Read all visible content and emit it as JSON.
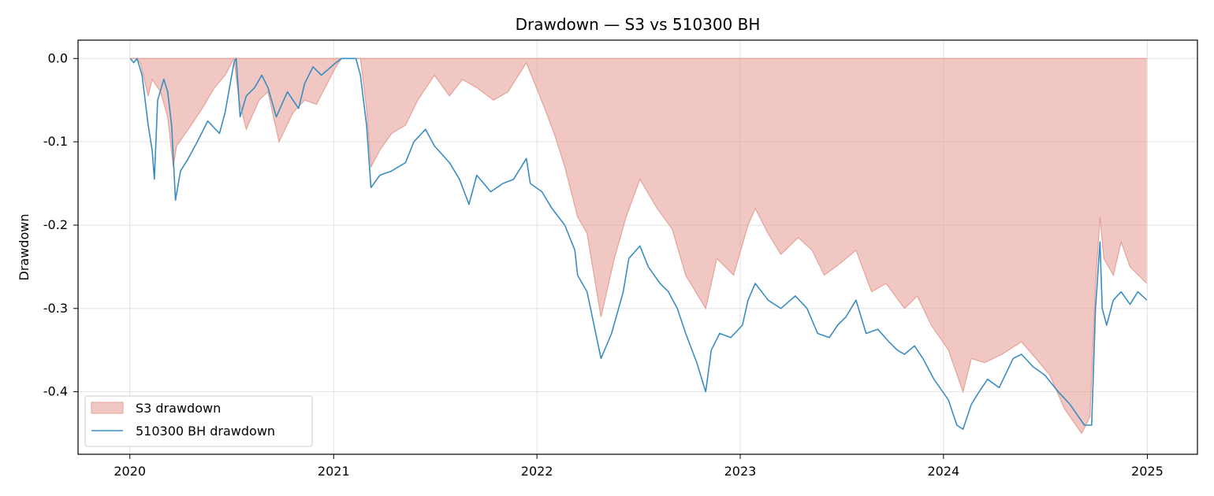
{
  "chart_data": {
    "type": "area",
    "title": "Drawdown — S3 vs 510300 BH",
    "xlabel": "",
    "ylabel": "Drawdown",
    "x_axis": "date",
    "xlim": [
      "2019-09-30",
      "2025-04-01"
    ],
    "ylim": [
      -0.475,
      0.022
    ],
    "x_tick_labels": [
      "2020",
      "2021",
      "2022",
      "2023",
      "2024",
      "2025"
    ],
    "y_tick_labels": [
      "0.0",
      "-0.1",
      "-0.2",
      "-0.3",
      "-0.4"
    ],
    "grid": true,
    "legend_position": "lower-left",
    "series": [
      {
        "name": "S3 drawdown",
        "kind": "area",
        "color": "#e6a299",
        "points": [
          [
            "2020-01-02",
            0.0
          ],
          [
            "2020-01-10",
            0.0
          ],
          [
            "2020-01-20",
            -0.005
          ],
          [
            "2020-02-03",
            -0.045
          ],
          [
            "2020-02-10",
            -0.025
          ],
          [
            "2020-02-25",
            -0.04
          ],
          [
            "2020-03-09",
            -0.07
          ],
          [
            "2020-03-19",
            -0.13
          ],
          [
            "2020-03-25",
            -0.105
          ],
          [
            "2020-04-15",
            -0.085
          ],
          [
            "2020-05-10",
            -0.06
          ],
          [
            "2020-06-01",
            -0.035
          ],
          [
            "2020-06-20",
            -0.02
          ],
          [
            "2020-07-06",
            0.0
          ],
          [
            "2020-07-15",
            -0.05
          ],
          [
            "2020-07-28",
            -0.085
          ],
          [
            "2020-08-20",
            -0.05
          ],
          [
            "2020-09-05",
            -0.04
          ],
          [
            "2020-09-25",
            -0.1
          ],
          [
            "2020-10-20",
            -0.065
          ],
          [
            "2020-11-10",
            -0.05
          ],
          [
            "2020-12-01",
            -0.055
          ],
          [
            "2021-01-05",
            -0.01
          ],
          [
            "2021-01-15",
            0.0
          ],
          [
            "2021-02-18",
            0.0
          ],
          [
            "2021-03-01",
            -0.06
          ],
          [
            "2021-03-09",
            -0.13
          ],
          [
            "2021-03-25",
            -0.11
          ],
          [
            "2021-04-15",
            -0.09
          ],
          [
            "2021-05-10",
            -0.08
          ],
          [
            "2021-06-01",
            -0.05
          ],
          [
            "2021-07-01",
            -0.02
          ],
          [
            "2021-07-28",
            -0.045
          ],
          [
            "2021-08-20",
            -0.025
          ],
          [
            "2021-09-15",
            -0.035
          ],
          [
            "2021-10-15",
            -0.05
          ],
          [
            "2021-11-10",
            -0.04
          ],
          [
            "2021-12-13",
            -0.005
          ],
          [
            "2021-12-28",
            -0.03
          ],
          [
            "2022-01-15",
            -0.06
          ],
          [
            "2022-02-01",
            -0.09
          ],
          [
            "2022-02-20",
            -0.13
          ],
          [
            "2022-03-15",
            -0.19
          ],
          [
            "2022-04-01",
            -0.21
          ],
          [
            "2022-04-26",
            -0.31
          ],
          [
            "2022-05-20",
            -0.24
          ],
          [
            "2022-06-10",
            -0.19
          ],
          [
            "2022-07-05",
            -0.145
          ],
          [
            "2022-08-05",
            -0.18
          ],
          [
            "2022-09-01",
            -0.205
          ],
          [
            "2022-09-25",
            -0.26
          ],
          [
            "2022-10-31",
            -0.3
          ],
          [
            "2022-11-20",
            -0.24
          ],
          [
            "2022-12-20",
            -0.26
          ],
          [
            "2023-01-15",
            -0.2
          ],
          [
            "2023-01-28",
            -0.18
          ],
          [
            "2023-02-20",
            -0.21
          ],
          [
            "2023-03-15",
            -0.235
          ],
          [
            "2023-04-15",
            -0.215
          ],
          [
            "2023-05-10",
            -0.23
          ],
          [
            "2023-06-01",
            -0.26
          ],
          [
            "2023-07-01",
            -0.245
          ],
          [
            "2023-07-28",
            -0.23
          ],
          [
            "2023-08-25",
            -0.28
          ],
          [
            "2023-09-20",
            -0.27
          ],
          [
            "2023-10-23",
            -0.3
          ],
          [
            "2023-11-15",
            -0.285
          ],
          [
            "2023-12-10",
            -0.32
          ],
          [
            "2024-01-10",
            -0.35
          ],
          [
            "2024-02-05",
            -0.4
          ],
          [
            "2024-02-20",
            -0.36
          ],
          [
            "2024-03-15",
            -0.365
          ],
          [
            "2024-04-15",
            -0.355
          ],
          [
            "2024-05-20",
            -0.34
          ],
          [
            "2024-06-15",
            -0.36
          ],
          [
            "2024-07-10",
            -0.38
          ],
          [
            "2024-08-05",
            -0.42
          ],
          [
            "2024-09-05",
            -0.45
          ],
          [
            "2024-09-20",
            -0.43
          ],
          [
            "2024-09-30",
            -0.27
          ],
          [
            "2024-10-08",
            -0.19
          ],
          [
            "2024-10-15",
            -0.24
          ],
          [
            "2024-11-01",
            -0.26
          ],
          [
            "2024-11-15",
            -0.22
          ],
          [
            "2024-12-01",
            -0.25
          ],
          [
            "2024-12-31",
            -0.27
          ]
        ]
      },
      {
        "name": "510300 BH drawdown",
        "kind": "line",
        "color": "#3a8dc1",
        "points": [
          [
            "2020-01-02",
            0.0
          ],
          [
            "2020-01-08",
            -0.005
          ],
          [
            "2020-01-14",
            0.0
          ],
          [
            "2020-01-23",
            -0.02
          ],
          [
            "2020-02-03",
            -0.08
          ],
          [
            "2020-02-10",
            -0.11
          ],
          [
            "2020-02-14",
            -0.145
          ],
          [
            "2020-02-20",
            -0.05
          ],
          [
            "2020-03-02",
            -0.025
          ],
          [
            "2020-03-09",
            -0.04
          ],
          [
            "2020-03-16",
            -0.08
          ],
          [
            "2020-03-23",
            -0.17
          ],
          [
            "2020-04-01",
            -0.135
          ],
          [
            "2020-04-15",
            -0.12
          ],
          [
            "2020-05-01",
            -0.1
          ],
          [
            "2020-05-20",
            -0.075
          ],
          [
            "2020-06-10",
            -0.09
          ],
          [
            "2020-06-20",
            -0.065
          ],
          [
            "2020-07-06",
            -0.005
          ],
          [
            "2020-07-10",
            0.0
          ],
          [
            "2020-07-17",
            -0.07
          ],
          [
            "2020-07-28",
            -0.045
          ],
          [
            "2020-08-12",
            -0.035
          ],
          [
            "2020-08-25",
            -0.02
          ],
          [
            "2020-09-05",
            -0.035
          ],
          [
            "2020-09-20",
            -0.07
          ],
          [
            "2020-10-10",
            -0.04
          ],
          [
            "2020-10-30",
            -0.06
          ],
          [
            "2020-11-10",
            -0.03
          ],
          [
            "2020-11-25",
            -0.01
          ],
          [
            "2020-12-10",
            -0.02
          ],
          [
            "2021-01-05",
            -0.005
          ],
          [
            "2021-01-15",
            0.0
          ],
          [
            "2021-02-10",
            0.0
          ],
          [
            "2021-02-18",
            -0.02
          ],
          [
            "2021-03-01",
            -0.08
          ],
          [
            "2021-03-09",
            -0.155
          ],
          [
            "2021-03-25",
            -0.14
          ],
          [
            "2021-04-15",
            -0.135
          ],
          [
            "2021-05-10",
            -0.125
          ],
          [
            "2021-05-25",
            -0.1
          ],
          [
            "2021-06-15",
            -0.085
          ],
          [
            "2021-07-01",
            -0.105
          ],
          [
            "2021-07-28",
            -0.125
          ],
          [
            "2021-08-15",
            -0.145
          ],
          [
            "2021-09-01",
            -0.175
          ],
          [
            "2021-09-15",
            -0.14
          ],
          [
            "2021-10-10",
            -0.16
          ],
          [
            "2021-11-01",
            -0.15
          ],
          [
            "2021-11-20",
            -0.145
          ],
          [
            "2021-12-13",
            -0.12
          ],
          [
            "2021-12-20",
            -0.15
          ],
          [
            "2022-01-10",
            -0.16
          ],
          [
            "2022-01-28",
            -0.18
          ],
          [
            "2022-02-20",
            -0.2
          ],
          [
            "2022-03-10",
            -0.23
          ],
          [
            "2022-03-15",
            -0.26
          ],
          [
            "2022-04-01",
            -0.28
          ],
          [
            "2022-04-26",
            -0.36
          ],
          [
            "2022-05-15",
            -0.33
          ],
          [
            "2022-06-05",
            -0.28
          ],
          [
            "2022-06-15",
            -0.24
          ],
          [
            "2022-07-05",
            -0.225
          ],
          [
            "2022-07-20",
            -0.25
          ],
          [
            "2022-08-10",
            -0.27
          ],
          [
            "2022-08-25",
            -0.28
          ],
          [
            "2022-09-10",
            -0.3
          ],
          [
            "2022-09-25",
            -0.33
          ],
          [
            "2022-10-15",
            -0.365
          ],
          [
            "2022-10-31",
            -0.4
          ],
          [
            "2022-11-10",
            -0.35
          ],
          [
            "2022-11-25",
            -0.33
          ],
          [
            "2022-12-15",
            -0.335
          ],
          [
            "2023-01-05",
            -0.32
          ],
          [
            "2023-01-15",
            -0.29
          ],
          [
            "2023-01-28",
            -0.27
          ],
          [
            "2023-02-20",
            -0.29
          ],
          [
            "2023-03-15",
            -0.3
          ],
          [
            "2023-04-10",
            -0.285
          ],
          [
            "2023-05-01",
            -0.3
          ],
          [
            "2023-05-20",
            -0.33
          ],
          [
            "2023-06-10",
            -0.335
          ],
          [
            "2023-06-25",
            -0.32
          ],
          [
            "2023-07-10",
            -0.31
          ],
          [
            "2023-07-28",
            -0.29
          ],
          [
            "2023-08-15",
            -0.33
          ],
          [
            "2023-09-05",
            -0.325
          ],
          [
            "2023-09-25",
            -0.34
          ],
          [
            "2023-10-10",
            -0.35
          ],
          [
            "2023-10-23",
            -0.355
          ],
          [
            "2023-11-10",
            -0.345
          ],
          [
            "2023-11-25",
            -0.36
          ],
          [
            "2023-12-15",
            -0.385
          ],
          [
            "2024-01-10",
            -0.41
          ],
          [
            "2024-01-25",
            -0.44
          ],
          [
            "2024-02-05",
            -0.445
          ],
          [
            "2024-02-20",
            -0.415
          ],
          [
            "2024-03-05",
            -0.4
          ],
          [
            "2024-03-20",
            -0.385
          ],
          [
            "2024-04-10",
            -0.395
          ],
          [
            "2024-05-05",
            -0.36
          ],
          [
            "2024-05-20",
            -0.355
          ],
          [
            "2024-06-10",
            -0.37
          ],
          [
            "2024-07-01",
            -0.38
          ],
          [
            "2024-07-25",
            -0.4
          ],
          [
            "2024-08-15",
            -0.415
          ],
          [
            "2024-09-10",
            -0.44
          ],
          [
            "2024-09-23",
            -0.44
          ],
          [
            "2024-09-30",
            -0.3
          ],
          [
            "2024-10-08",
            -0.22
          ],
          [
            "2024-10-12",
            -0.3
          ],
          [
            "2024-10-20",
            -0.32
          ],
          [
            "2024-11-01",
            -0.29
          ],
          [
            "2024-11-15",
            -0.28
          ],
          [
            "2024-12-01",
            -0.295
          ],
          [
            "2024-12-15",
            -0.28
          ],
          [
            "2024-12-31",
            -0.29
          ]
        ]
      }
    ]
  }
}
